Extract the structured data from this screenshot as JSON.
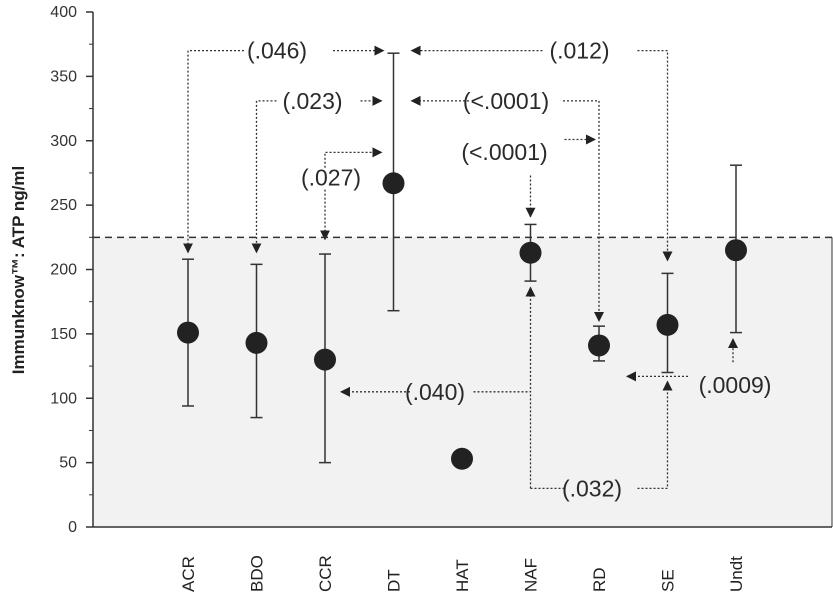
{
  "chart_data": {
    "type": "scatter",
    "title": "",
    "xlabel": "",
    "ylabel": "Immunknow™: ATP ng/ml",
    "ylim": [
      0,
      400
    ],
    "yticks": [
      "0",
      "50",
      "100",
      "150",
      "200",
      "250",
      "300",
      "350",
      "400"
    ],
    "categories": [
      "ACR",
      "BDO",
      "CCR",
      "DT",
      "HAT",
      "NAF",
      "RD",
      "SE",
      "Undt"
    ],
    "series": [
      {
        "name": "",
        "values": [
          151,
          143,
          130,
          267,
          53,
          213,
          141,
          157,
          215
        ],
        "error_low": [
          94,
          85,
          50,
          168,
          null,
          191,
          129,
          120,
          151
        ],
        "error_high": [
          208,
          204,
          212,
          368,
          null,
          235,
          156,
          197,
          281
        ]
      }
    ],
    "reference_line": {
      "y": 225,
      "style": "dashed",
      "shaded_below": true
    },
    "annotations": [
      {
        "text": "(.046)",
        "from": "ACR",
        "to": "DT"
      },
      {
        "text": "(.023)",
        "from": "BDO",
        "to": "DT"
      },
      {
        "text": "(.027)",
        "from": "CCR",
        "to": "DT"
      },
      {
        "text": "(.012)",
        "from": "SE",
        "to": "DT"
      },
      {
        "text": "(<.0001)",
        "from": "RD",
        "to": "DT"
      },
      {
        "text": "(<.0001)",
        "from": "RD",
        "to": "NAF"
      },
      {
        "text": "(.040)",
        "from": "NAF",
        "to": "CCR"
      },
      {
        "text": "(.032)",
        "from": "NAF",
        "to": "SE"
      },
      {
        "text": "(.0009)",
        "from": "Undt",
        "to": "RD"
      }
    ],
    "grid": false,
    "colors": {
      "marker": "#222222",
      "shade": "#f2f2f2",
      "axis": "#333333"
    }
  }
}
